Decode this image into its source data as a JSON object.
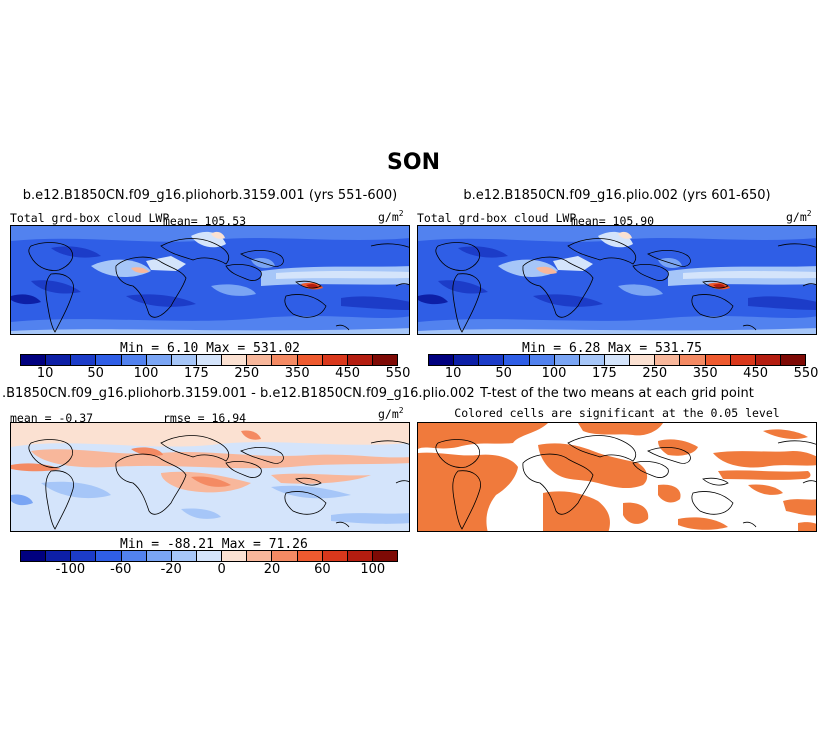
{
  "season": "SON",
  "panels": {
    "top_left": {
      "title": "b.e12.B1850CN.f09_g16.pliohorb.3159.001 (yrs 551-600)",
      "variable": "Total grd-box cloud LWP",
      "mean_text": "mean= 105.53",
      "units": "g/m",
      "units_sup": "2",
      "minmax": "Min =    6.10  Max = 531.02"
    },
    "top_right": {
      "title": "b.e12.B1850CN.f09_g16.plio.002 (yrs 601-650)",
      "variable": "Total grd-box cloud LWP",
      "mean_text": "mean= 105.90",
      "units": "g/m",
      "units_sup": "2",
      "minmax": "Min =    6.28  Max = 531.75"
    },
    "bottom_left": {
      "title": ".B1850CN.f09_g16.pliohorb.3159.001 - b.e12.B1850CN.f09_g16.plio.002",
      "mean_text": "mean =  -0.37",
      "rmse_text": "rmse =  16.94",
      "units": "g/m",
      "units_sup": "2",
      "minmax": "Min = -88.21  Max =  71.26"
    },
    "bottom_right": {
      "title": "T-test of the two means at each grid point",
      "subtitle": "Colored cells are significant at the 0.05 level"
    }
  },
  "chart_data": [
    {
      "type": "heatmap",
      "title": "b.e12.B1850CN.f09_g16.pliohorb.3159.001 (yrs 551-600)",
      "colorbar": {
        "labels": [
          "10",
          "50",
          "100",
          "175",
          "250",
          "350",
          "450",
          "550"
        ],
        "colors": [
          "#00007f",
          "#0d1fa6",
          "#1c3cc8",
          "#2f5ee6",
          "#5282ef",
          "#7aa5f4",
          "#a6c6f8",
          "#d4e4fb",
          "#fbe1d2",
          "#f8b79b",
          "#f48a63",
          "#ee5a2f",
          "#d9381c",
          "#b41d10",
          "#7e0a05"
        ]
      },
      "mean": 105.53,
      "min": 6.1,
      "max": 531.02
    },
    {
      "type": "heatmap",
      "title": "b.e12.B1850CN.f09_g16.plio.002 (yrs 601-650)",
      "colorbar": {
        "labels": [
          "10",
          "50",
          "100",
          "175",
          "250",
          "350",
          "450",
          "550"
        ],
        "colors": [
          "#00007f",
          "#0d1fa6",
          "#1c3cc8",
          "#2f5ee6",
          "#5282ef",
          "#7aa5f4",
          "#a6c6f8",
          "#d4e4fb",
          "#fbe1d2",
          "#f8b79b",
          "#f48a63",
          "#ee5a2f",
          "#d9381c",
          "#b41d10",
          "#7e0a05"
        ]
      },
      "mean": 105.9,
      "min": 6.28,
      "max": 531.75
    },
    {
      "type": "heatmap",
      "title": ".B1850CN.f09_g16.pliohorb.3159.001 - b.e12.B1850CN.f09_g16.plio.002",
      "colorbar": {
        "labels": [
          "-100",
          "-60",
          "-20",
          "0",
          "20",
          "60",
          "100"
        ],
        "colors": [
          "#00007f",
          "#0d1fa6",
          "#1c3cc8",
          "#2f5ee6",
          "#5282ef",
          "#7aa5f4",
          "#a6c6f8",
          "#d4e4fb",
          "#fbe1d2",
          "#f8b79b",
          "#f48a63",
          "#ee5a2f",
          "#d9381c",
          "#b41d10",
          "#7e0a05"
        ]
      },
      "mean": -0.37,
      "rmse": 16.94,
      "min": -88.21,
      "max": 71.26
    },
    {
      "type": "heatmap",
      "title": "T-test of the two means at each grid point",
      "significant_color": "#f07a3c"
    }
  ]
}
